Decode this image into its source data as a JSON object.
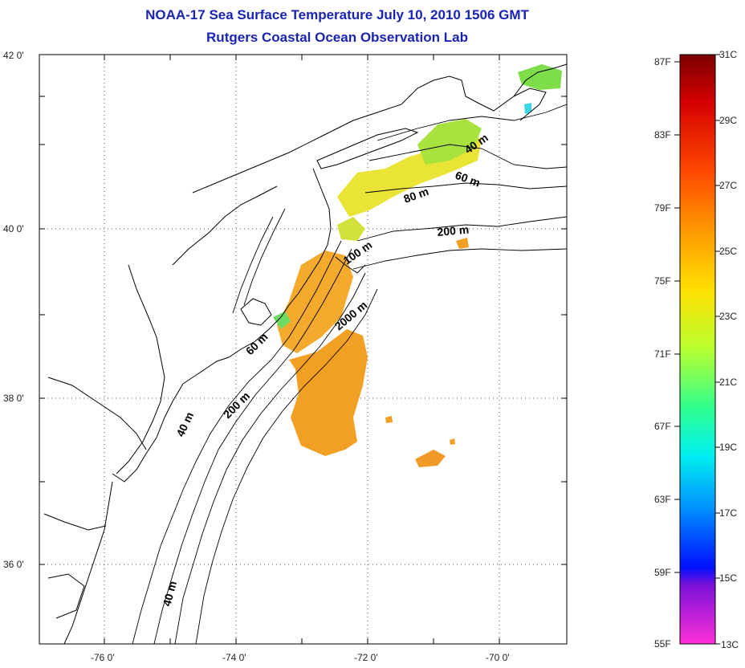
{
  "title": "NOAA-17 Sea Surface Temperature July 10, 2010 1506 GMT",
  "subtitle": "Rutgers Coastal Ocean Observation Lab",
  "lat_labels": [
    "42 0'",
    "40 0'",
    "38 0'",
    "36 0'"
  ],
  "lon_labels": [
    "-76 0'",
    "-74 0'",
    "-72 0'",
    "-70 0'"
  ],
  "isobaths": [
    "40 m",
    "60 m",
    "80 m",
    "200 m",
    "100 m",
    "2000 m",
    "60 m",
    "200 m",
    "40 m",
    "40 m"
  ],
  "colorbar": {
    "fahrenheit": [
      "87F",
      "83F",
      "79F",
      "75F",
      "71F",
      "67F",
      "63F",
      "59F",
      "55F"
    ],
    "celsius": [
      "31C",
      "29C",
      "27C",
      "25C",
      "23C",
      "21C",
      "19C",
      "17C",
      "15C",
      "13C"
    ]
  },
  "colors": {
    "title": "#1a24b4",
    "warm_sst": "#f2a024",
    "mid_sst": "#e9e436",
    "cool_sst": "#7ede4a",
    "coast_line": "#000000"
  }
}
